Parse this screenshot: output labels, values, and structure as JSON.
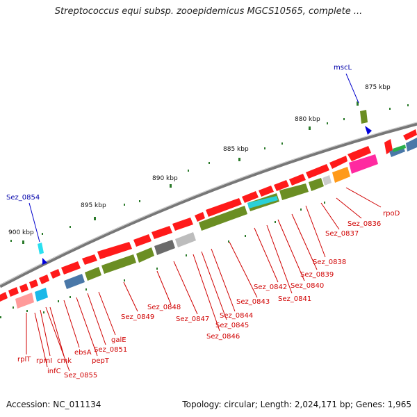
{
  "title": "Streptococcus equi subsp. zooepidemicus MGCS10565, complete ...",
  "footer": {
    "accession": "Accession: NC_011134",
    "stats": "Topology: circular; Length: 2,024,171 bp; Genes: 1,965"
  },
  "ticks": [
    "875 kbp",
    "880 kbp",
    "885 kbp",
    "890 kbp",
    "895 kbp",
    "900 kbp"
  ],
  "callouts_blue": [
    "mscL",
    "Sez_0854"
  ],
  "gene_labels": [
    "rpoD",
    "Sez_0836",
    "Sez_0837",
    "Sez_0838",
    "Sez_0839",
    "Sez_0840",
    "Sez_0841",
    "Sez_0842",
    "Sez_0843",
    "Sez_0844",
    "Sez_0845",
    "Sez_0846",
    "Sez_0847",
    "Sez_0848",
    "Sez_0849",
    "galE",
    "Sez_0851",
    "pepT",
    "ebsA",
    "cmk",
    "rpmI",
    "infC",
    "Sez_0855",
    "rplT"
  ],
  "colors": {
    "gene_red": "#ff1a1a",
    "cds_green": "#6b8e23",
    "label_red": "#d00000",
    "label_blue": "#0000aa",
    "backbone": "#808080"
  }
}
